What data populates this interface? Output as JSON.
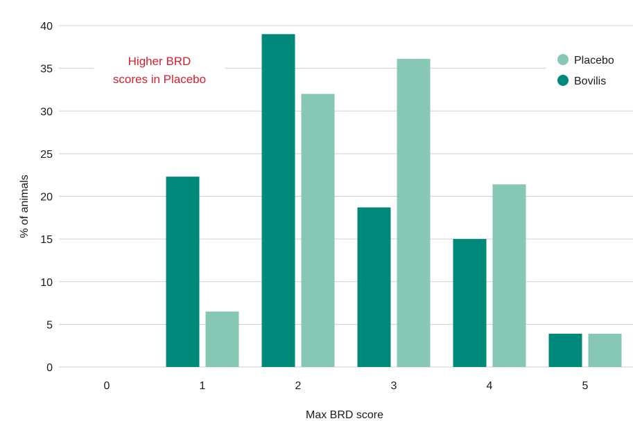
{
  "chart_data": {
    "type": "bar",
    "title": "",
    "xlabel": "Max BRD score",
    "ylabel": "% of animals",
    "categories": [
      "0",
      "1",
      "2",
      "3",
      "4",
      "5"
    ],
    "ylim": [
      0,
      40
    ],
    "yticks": [
      "0",
      "5",
      "10",
      "15",
      "20",
      "25",
      "30",
      "35",
      "40"
    ],
    "grid": true,
    "legend_position": "top-right",
    "series": [
      {
        "name": "Bovilis",
        "color": "#00897b",
        "values": [
          0,
          22.3,
          39,
          18.7,
          15,
          3.9
        ]
      },
      {
        "name": "Placebo",
        "color": "#86c7b5",
        "values": [
          0,
          6.5,
          32,
          36.1,
          21.4,
          3.9
        ]
      }
    ],
    "legend_order": [
      "Placebo",
      "Bovilis"
    ],
    "annotation": {
      "lines": [
        "Higher BRD",
        "scores in Placebo"
      ],
      "color": "#d81e2c"
    },
    "gridline_color": "#cfcfcf"
  }
}
